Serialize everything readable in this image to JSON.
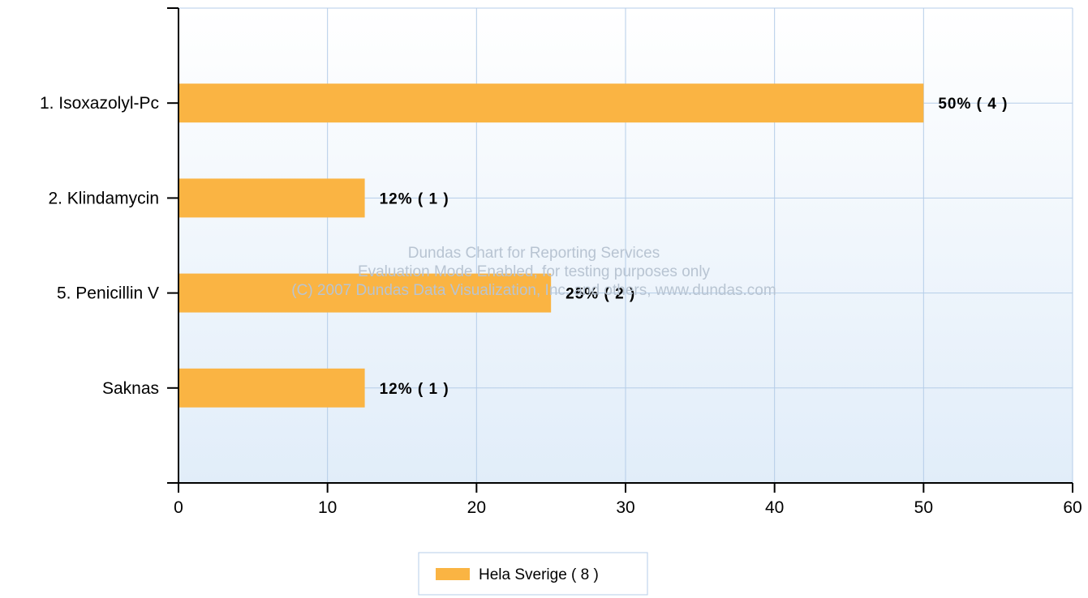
{
  "chart_data": {
    "type": "bar",
    "orientation": "horizontal",
    "categories": [
      "1. Isoxazolyl-Pc",
      "2. Klindamycin",
      "5. Penicillin V",
      "Saknas"
    ],
    "series": [
      {
        "name": "Hela Sverige  ( 8 )",
        "values": [
          50,
          12.5,
          25,
          12.5
        ],
        "labels": [
          "50% ( 4 )",
          "12% ( 1 )",
          "25% ( 2 )",
          "12% ( 1 )"
        ]
      }
    ],
    "xlim": [
      0,
      60
    ],
    "xticks": [
      0,
      10,
      20,
      30,
      40,
      50,
      60
    ],
    "grid": true,
    "legend_position": "bottom",
    "watermark": [
      "Dundas Chart for Reporting Services",
      "Evaluation Mode Enabled, for testing purposes only",
      "(C) 2007 Dundas Data Visualization, Inc. and others, www.dundas.com"
    ]
  },
  "colors": {
    "bar": "#fab443",
    "grid": "#b5cde8",
    "plot_top": "#ffffff",
    "plot_bottom": "#e1edf9",
    "axis": "#000000"
  }
}
